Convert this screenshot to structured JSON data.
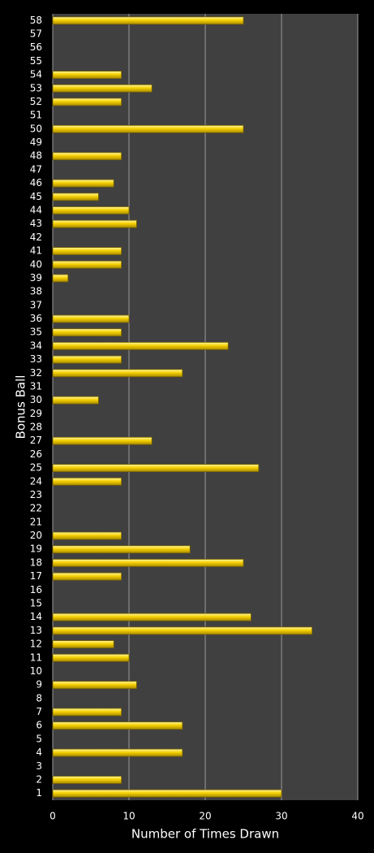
{
  "chart_data": {
    "type": "barh",
    "x_label": "Number of Times Drawn",
    "y_label": "Bonus Ball",
    "color": "#f5d000",
    "categories": [
      "1",
      "2",
      "3",
      "4",
      "5",
      "6",
      "7",
      "8",
      "9",
      "10",
      "11",
      "12",
      "13",
      "14",
      "15",
      "16",
      "17",
      "18",
      "19",
      "20",
      "21",
      "22",
      "23",
      "24",
      "25",
      "26",
      "27",
      "28",
      "29",
      "30",
      "31",
      "32",
      "33",
      "34",
      "35",
      "36",
      "37",
      "38",
      "39",
      "40",
      "41",
      "42",
      "43",
      "44",
      "45",
      "46",
      "47",
      "48",
      "49",
      "50",
      "51",
      "52",
      "53",
      "54",
      "55",
      "56",
      "57",
      "58"
    ],
    "values": [
      30,
      9,
      0,
      17,
      0,
      17,
      9,
      0,
      11,
      0,
      10,
      8,
      34,
      26,
      0,
      0,
      9,
      25,
      18,
      9,
      0,
      0,
      0,
      9,
      27,
      0,
      13,
      0,
      0,
      6,
      0,
      17,
      9,
      23,
      9,
      10,
      0,
      0,
      2,
      9,
      9,
      0,
      11,
      10,
      6,
      8,
      0,
      9,
      0,
      25,
      0,
      9,
      13,
      9,
      0,
      0,
      0,
      25
    ],
    "xlim": [
      0,
      40
    ],
    "xticks": [
      0,
      10,
      20,
      30,
      40
    ],
    "grid": true
  }
}
